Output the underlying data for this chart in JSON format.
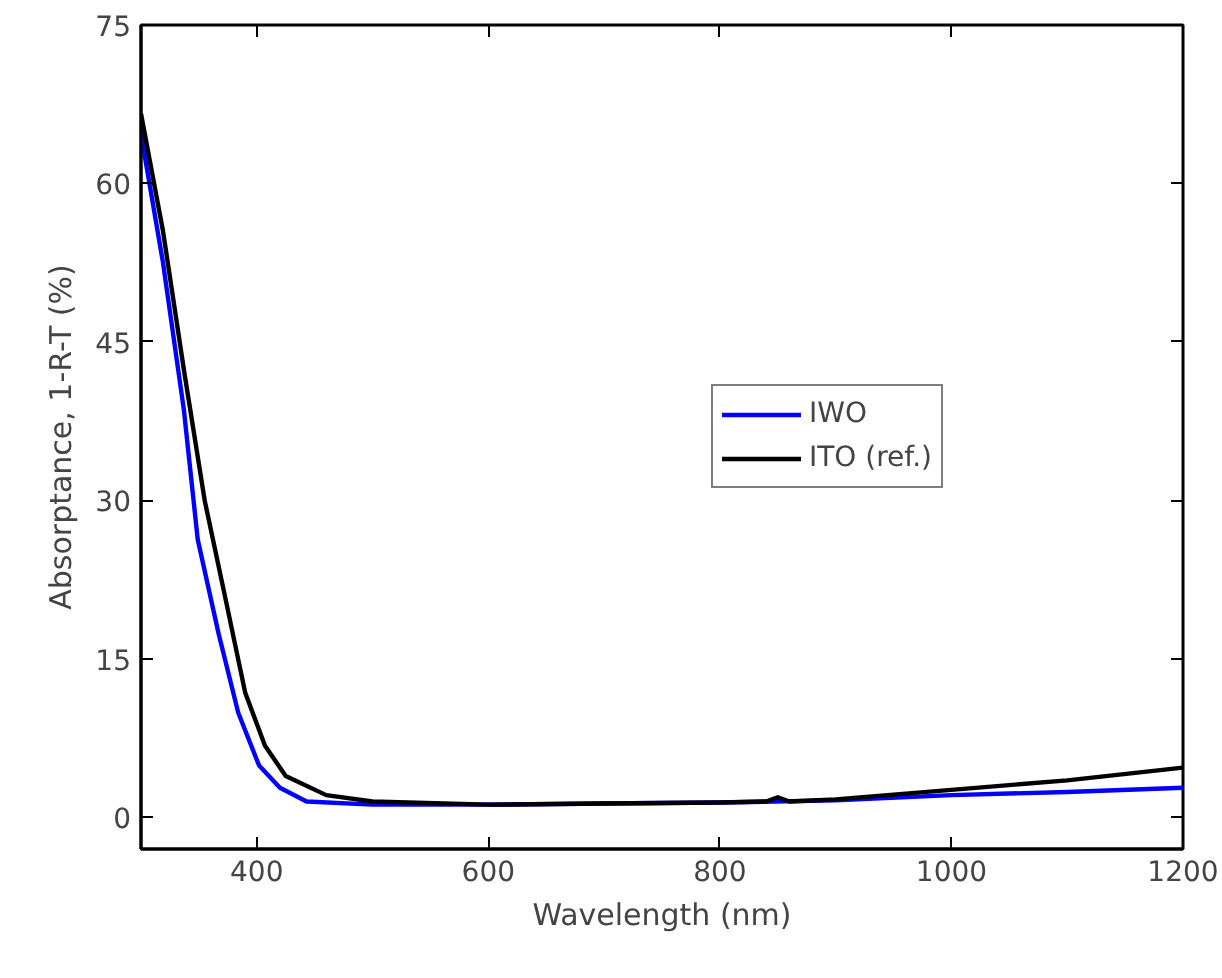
{
  "chart_data": {
    "type": "line",
    "xlabel": "Wavelength (nm)",
    "ylabel": "Absorptance, 1-R-T (%)",
    "xlim": [
      300,
      1200
    ],
    "xticks": [
      400,
      600,
      800,
      1000,
      1200
    ],
    "ylim": [
      -3,
      75
    ],
    "yticks": [
      0,
      15,
      30,
      45,
      60,
      75
    ],
    "grid": false,
    "legend": "right",
    "marker": "none",
    "line_style": "solid",
    "series": [
      {
        "name": "IWO",
        "color": "#0000ff",
        "x": [
          300,
          319,
          337,
          349,
          367,
          384,
          402,
          420,
          443,
          500,
          600,
          700,
          800,
          900,
          1000,
          1100,
          1200
        ],
        "values": [
          64.7,
          52.5,
          38.6,
          26.3,
          17.4,
          9.9,
          4.9,
          2.8,
          1.5,
          1.2,
          1.2,
          1.3,
          1.4,
          1.6,
          2.1,
          2.4,
          2.8
        ]
      },
      {
        "name": "ITO (ref.)",
        "color": "#000000",
        "x": [
          300,
          319,
          337,
          355,
          372,
          390,
          407,
          425,
          460,
          500,
          600,
          700,
          800,
          840,
          850,
          860,
          900,
          1000,
          1100,
          1200
        ],
        "values": [
          66.6,
          55.5,
          42.4,
          30.0,
          21.2,
          11.8,
          6.8,
          3.9,
          2.1,
          1.5,
          1.2,
          1.3,
          1.4,
          1.5,
          1.9,
          1.5,
          1.7,
          2.6,
          3.5,
          4.7
        ]
      }
    ]
  }
}
